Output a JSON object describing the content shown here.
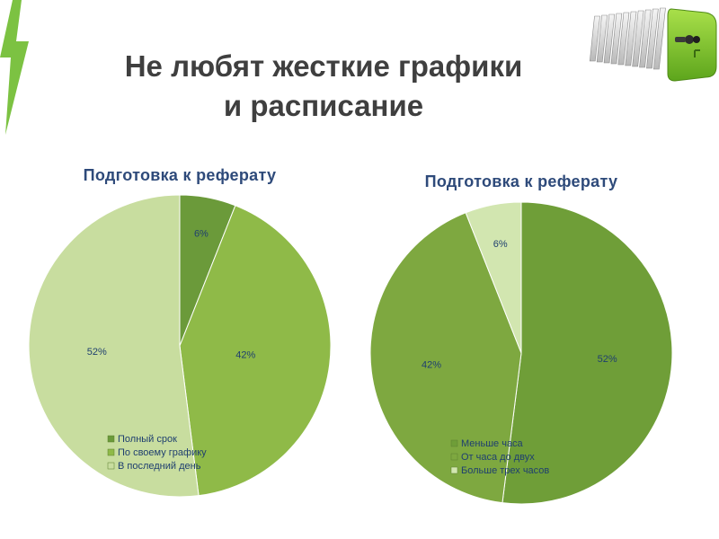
{
  "slide": {
    "title_line1": "Не любят жесткие графики",
    "title_line2": "и расписание"
  },
  "colors": {
    "accent": "#7cc242",
    "title": "#3f3f3f",
    "chart_title": "#2e4a7a",
    "label": "#1f3f6f"
  },
  "decor": {
    "logo_icon": "filing-cabinet-key-icon",
    "accent_icon": "lightning-stroke-icon"
  },
  "chart_data": [
    {
      "type": "pie",
      "title": "Подготовка к реферату",
      "slices": [
        {
          "label": "Полный срок",
          "value": 6,
          "display": "6%",
          "color": "#6b9a3a"
        },
        {
          "label": "По своему графику",
          "value": 42,
          "display": "42%",
          "color": "#8fba48"
        },
        {
          "label": "В последний день",
          "value": 52,
          "display": "52%",
          "color": "#c8dd9f"
        }
      ],
      "legend_position": "bottom-right"
    },
    {
      "type": "pie",
      "title": "Подготовка к реферату",
      "slices": [
        {
          "label": "Меньше часа",
          "value": 52,
          "display": "52%",
          "color": "#6f9e38"
        },
        {
          "label": "От часа до двух",
          "value": 42,
          "display": "42%",
          "color": "#7ea840"
        },
        {
          "label": "Больше трех часов",
          "value": 6,
          "display": "6%",
          "color": "#d2e6b0"
        }
      ],
      "legend_position": "bottom-right"
    }
  ]
}
